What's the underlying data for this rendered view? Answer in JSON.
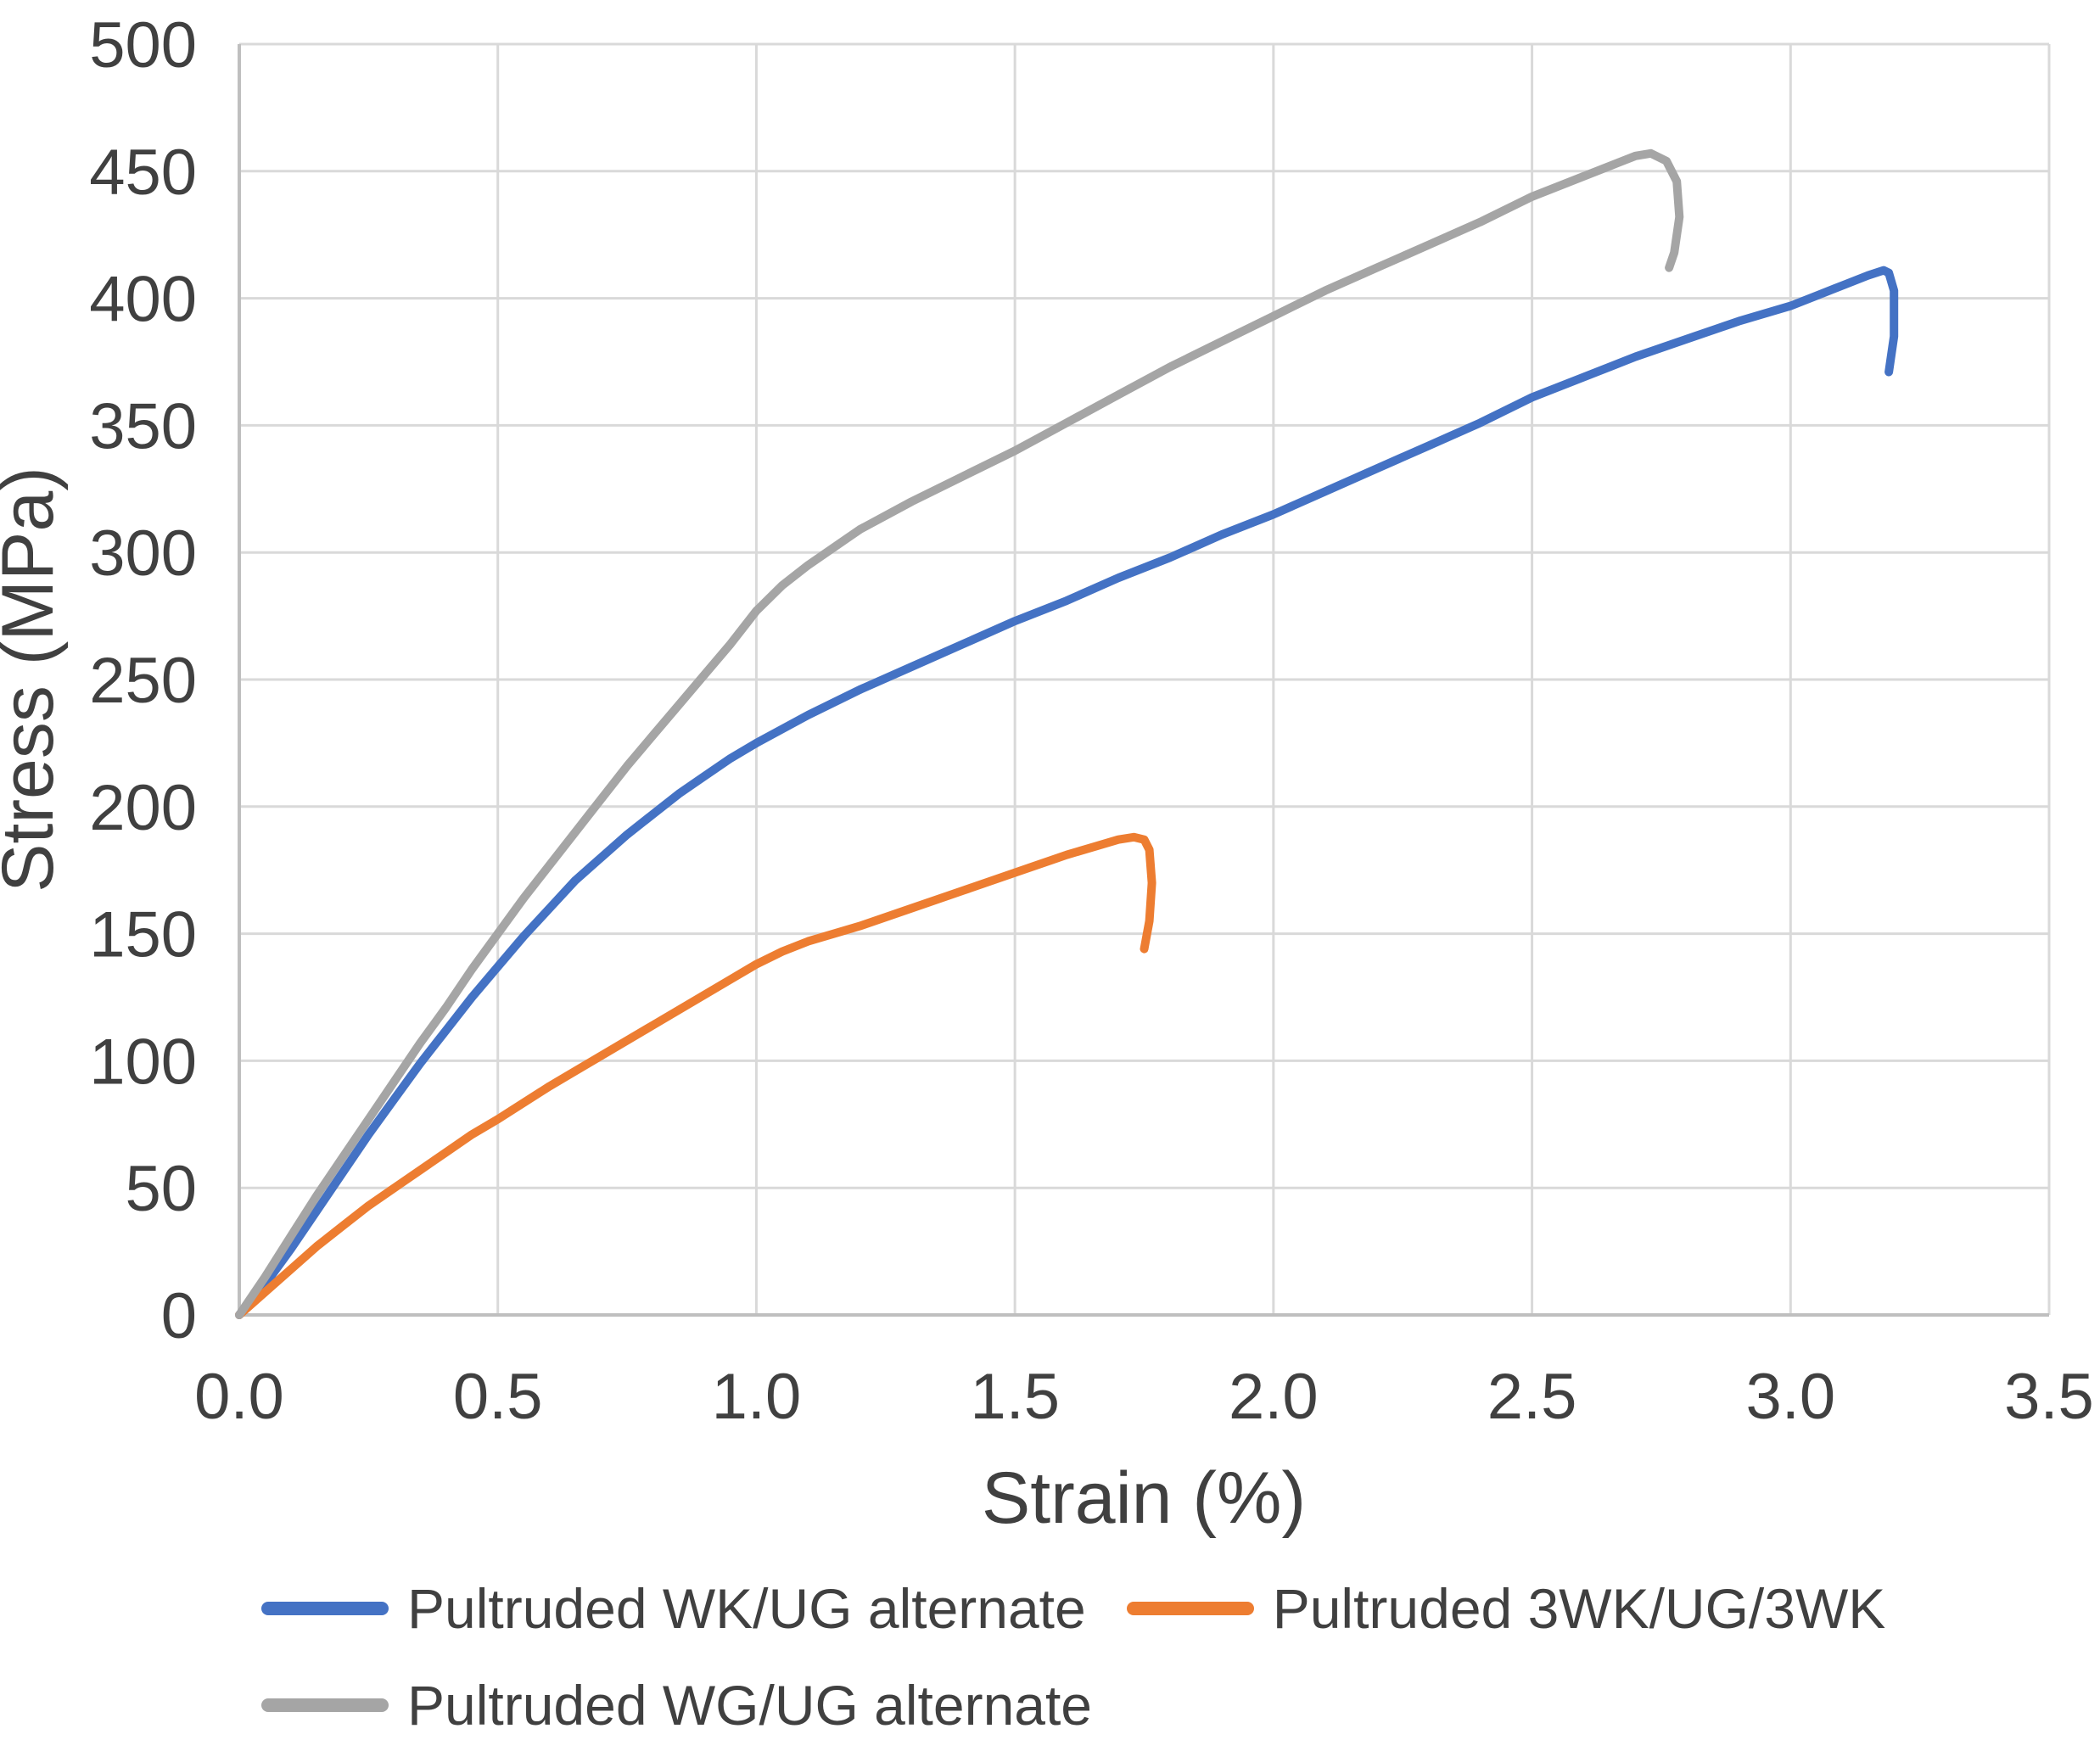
{
  "chart_data": {
    "type": "line",
    "title": "",
    "xlabel": "Strain (%)",
    "ylabel": "Stress (MPa)",
    "xlim": [
      0,
      3.5
    ],
    "ylim": [
      0,
      500
    ],
    "grid": true,
    "legend_position": "bottom",
    "x_ticks": [
      0,
      0.5,
      1.0,
      1.5,
      2.0,
      2.5,
      3.0,
      3.5
    ],
    "x_tick_labels": [
      "0.0",
      "0.5",
      "1.0",
      "1.5",
      "2.0",
      "2.5",
      "3.0",
      "3.5"
    ],
    "y_ticks": [
      0,
      50,
      100,
      150,
      200,
      250,
      300,
      350,
      400,
      450,
      500
    ],
    "y_tick_labels": [
      "0",
      "50",
      "100",
      "150",
      "200",
      "250",
      "300",
      "350",
      "400",
      "450",
      "500"
    ],
    "series": [
      {
        "name": "Pultruded WK/UG alternate",
        "color": "#4472C4",
        "points": [
          [
            0,
            0
          ],
          [
            0.05,
            12
          ],
          [
            0.1,
            26
          ],
          [
            0.15,
            41
          ],
          [
            0.2,
            56
          ],
          [
            0.25,
            71
          ],
          [
            0.3,
            85
          ],
          [
            0.35,
            99
          ],
          [
            0.4,
            112
          ],
          [
            0.45,
            125
          ],
          [
            0.5,
            137
          ],
          [
            0.55,
            149
          ],
          [
            0.6,
            160
          ],
          [
            0.65,
            171
          ],
          [
            0.7,
            180
          ],
          [
            0.75,
            189
          ],
          [
            0.8,
            197
          ],
          [
            0.85,
            205
          ],
          [
            0.9,
            212
          ],
          [
            0.95,
            219
          ],
          [
            1.0,
            225
          ],
          [
            1.1,
            236
          ],
          [
            1.2,
            246
          ],
          [
            1.3,
            255
          ],
          [
            1.4,
            264
          ],
          [
            1.5,
            273
          ],
          [
            1.6,
            281
          ],
          [
            1.7,
            290
          ],
          [
            1.8,
            298
          ],
          [
            1.9,
            307
          ],
          [
            2.0,
            315
          ],
          [
            2.1,
            324
          ],
          [
            2.2,
            333
          ],
          [
            2.3,
            342
          ],
          [
            2.4,
            351
          ],
          [
            2.5,
            361
          ],
          [
            2.6,
            369
          ],
          [
            2.7,
            377
          ],
          [
            2.8,
            384
          ],
          [
            2.9,
            391
          ],
          [
            3.0,
            397
          ],
          [
            3.05,
            401
          ],
          [
            3.1,
            405
          ],
          [
            3.15,
            409
          ],
          [
            3.18,
            411
          ],
          [
            3.19,
            410
          ],
          [
            3.2,
            403
          ],
          [
            3.2,
            385
          ],
          [
            3.19,
            371
          ]
        ]
      },
      {
        "name": "Pultruded 3WK/UG/3WK",
        "color": "#ED7D31",
        "points": [
          [
            0,
            0
          ],
          [
            0.05,
            9
          ],
          [
            0.1,
            18
          ],
          [
            0.15,
            27
          ],
          [
            0.2,
            35
          ],
          [
            0.25,
            43
          ],
          [
            0.3,
            50
          ],
          [
            0.35,
            57
          ],
          [
            0.4,
            64
          ],
          [
            0.45,
            71
          ],
          [
            0.5,
            77
          ],
          [
            0.6,
            90
          ],
          [
            0.7,
            102
          ],
          [
            0.8,
            114
          ],
          [
            0.9,
            126
          ],
          [
            0.95,
            132
          ],
          [
            1.0,
            138
          ],
          [
            1.05,
            143
          ],
          [
            1.1,
            147
          ],
          [
            1.2,
            153
          ],
          [
            1.3,
            160
          ],
          [
            1.4,
            167
          ],
          [
            1.5,
            174
          ],
          [
            1.6,
            181
          ],
          [
            1.65,
            184
          ],
          [
            1.7,
            187
          ],
          [
            1.73,
            188
          ],
          [
            1.75,
            187
          ],
          [
            1.76,
            183
          ],
          [
            1.765,
            170
          ],
          [
            1.76,
            155
          ],
          [
            1.75,
            144
          ]
        ]
      },
      {
        "name": "Pultruded WG/UG alternate",
        "color": "#A5A5A5",
        "points": [
          [
            0,
            0
          ],
          [
            0.05,
            15
          ],
          [
            0.1,
            31
          ],
          [
            0.15,
            47
          ],
          [
            0.2,
            62
          ],
          [
            0.25,
            77
          ],
          [
            0.3,
            92
          ],
          [
            0.35,
            107
          ],
          [
            0.4,
            121
          ],
          [
            0.45,
            136
          ],
          [
            0.5,
            150
          ],
          [
            0.55,
            164
          ],
          [
            0.6,
            177
          ],
          [
            0.65,
            190
          ],
          [
            0.7,
            203
          ],
          [
            0.75,
            216
          ],
          [
            0.8,
            228
          ],
          [
            0.85,
            240
          ],
          [
            0.9,
            252
          ],
          [
            0.95,
            264
          ],
          [
            1.0,
            277
          ],
          [
            1.05,
            287
          ],
          [
            1.1,
            295
          ],
          [
            1.2,
            309
          ],
          [
            1.3,
            320
          ],
          [
            1.4,
            330
          ],
          [
            1.5,
            340
          ],
          [
            1.6,
            351
          ],
          [
            1.7,
            362
          ],
          [
            1.8,
            373
          ],
          [
            1.9,
            383
          ],
          [
            2.0,
            393
          ],
          [
            2.1,
            403
          ],
          [
            2.2,
            412
          ],
          [
            2.3,
            421
          ],
          [
            2.4,
            430
          ],
          [
            2.5,
            440
          ],
          [
            2.6,
            448
          ],
          [
            2.65,
            452
          ],
          [
            2.7,
            456
          ],
          [
            2.73,
            457
          ],
          [
            2.76,
            454
          ],
          [
            2.78,
            446
          ],
          [
            2.785,
            432
          ],
          [
            2.775,
            418
          ],
          [
            2.765,
            412
          ]
        ]
      }
    ],
    "legend_rows": [
      [
        0,
        1
      ],
      [
        2
      ]
    ]
  },
  "colors": {
    "gridline": "#D9D9D9",
    "axis_line": "#BFBFBF",
    "text": "#404040",
    "background": "#FFFFFF"
  }
}
